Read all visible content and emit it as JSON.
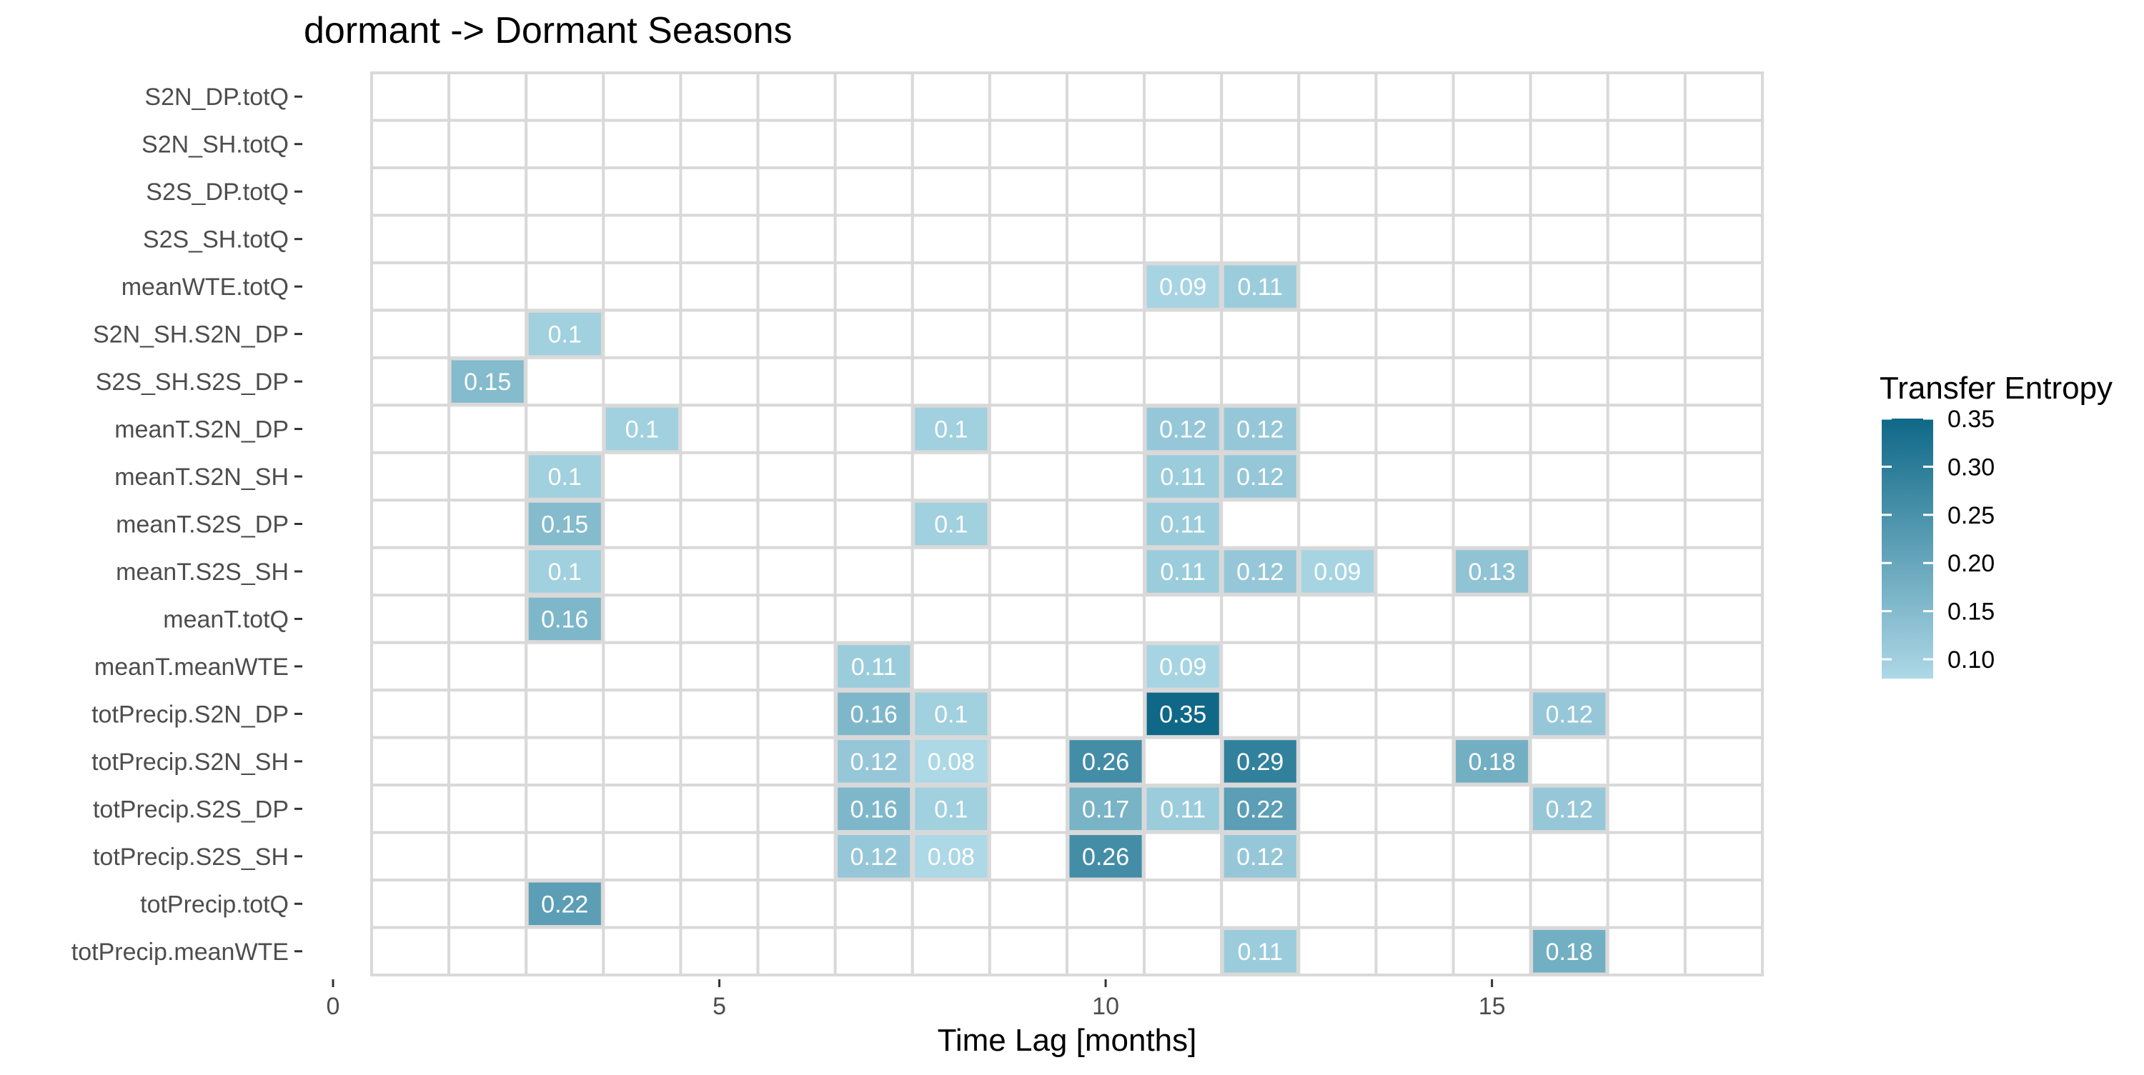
{
  "chart_data": {
    "type": "heatmap",
    "title": "dormant -> Dormant Seasons",
    "xlabel": "Time Lag [months]",
    "ylabel": "",
    "xlim": [
      0,
      18.5
    ],
    "x_ticks": [
      0,
      5,
      10,
      15
    ],
    "x_tick_labels": [
      "0",
      "5",
      "10",
      "15"
    ],
    "x_cells": [
      1,
      2,
      3,
      4,
      5,
      6,
      7,
      8,
      9,
      10,
      11,
      12,
      13,
      14,
      15,
      16,
      17,
      18
    ],
    "rows": [
      "S2N_DP.totQ",
      "S2N_SH.totQ",
      "S2S_DP.totQ",
      "S2S_SH.totQ",
      "meanWTE.totQ",
      "S2N_SH.S2N_DP",
      "S2S_SH.S2S_DP",
      "meanT.S2N_DP",
      "meanT.S2N_SH",
      "meanT.S2S_DP",
      "meanT.S2S_SH",
      "meanT.totQ",
      "meanT.meanWTE",
      "totPrecip.S2N_DP",
      "totPrecip.S2N_SH",
      "totPrecip.S2S_DP",
      "totPrecip.S2S_SH",
      "totPrecip.totQ",
      "totPrecip.meanWTE"
    ],
    "cells": [
      {
        "row": "meanWTE.totQ",
        "x": 11,
        "value": 0.09,
        "label": "0.09"
      },
      {
        "row": "meanWTE.totQ",
        "x": 12,
        "value": 0.11,
        "label": "0.11"
      },
      {
        "row": "S2N_SH.S2N_DP",
        "x": 3,
        "value": 0.1,
        "label": "0.1"
      },
      {
        "row": "S2S_SH.S2S_DP",
        "x": 2,
        "value": 0.15,
        "label": "0.15"
      },
      {
        "row": "meanT.S2N_DP",
        "x": 4,
        "value": 0.1,
        "label": "0.1"
      },
      {
        "row": "meanT.S2N_DP",
        "x": 8,
        "value": 0.1,
        "label": "0.1"
      },
      {
        "row": "meanT.S2N_DP",
        "x": 11,
        "value": 0.12,
        "label": "0.12"
      },
      {
        "row": "meanT.S2N_DP",
        "x": 12,
        "value": 0.12,
        "label": "0.12"
      },
      {
        "row": "meanT.S2N_SH",
        "x": 3,
        "value": 0.1,
        "label": "0.1"
      },
      {
        "row": "meanT.S2N_SH",
        "x": 11,
        "value": 0.11,
        "label": "0.11"
      },
      {
        "row": "meanT.S2N_SH",
        "x": 12,
        "value": 0.12,
        "label": "0.12"
      },
      {
        "row": "meanT.S2S_DP",
        "x": 3,
        "value": 0.15,
        "label": "0.15"
      },
      {
        "row": "meanT.S2S_DP",
        "x": 8,
        "value": 0.1,
        "label": "0.1"
      },
      {
        "row": "meanT.S2S_DP",
        "x": 11,
        "value": 0.11,
        "label": "0.11"
      },
      {
        "row": "meanT.S2S_SH",
        "x": 3,
        "value": 0.1,
        "label": "0.1"
      },
      {
        "row": "meanT.S2S_SH",
        "x": 11,
        "value": 0.11,
        "label": "0.11"
      },
      {
        "row": "meanT.S2S_SH",
        "x": 12,
        "value": 0.12,
        "label": "0.12"
      },
      {
        "row": "meanT.S2S_SH",
        "x": 13,
        "value": 0.09,
        "label": "0.09"
      },
      {
        "row": "meanT.S2S_SH",
        "x": 15,
        "value": 0.13,
        "label": "0.13"
      },
      {
        "row": "meanT.totQ",
        "x": 3,
        "value": 0.16,
        "label": "0.16"
      },
      {
        "row": "meanT.meanWTE",
        "x": 7,
        "value": 0.11,
        "label": "0.11"
      },
      {
        "row": "meanT.meanWTE",
        "x": 11,
        "value": 0.09,
        "label": "0.09"
      },
      {
        "row": "totPrecip.S2N_DP",
        "x": 7,
        "value": 0.16,
        "label": "0.16"
      },
      {
        "row": "totPrecip.S2N_DP",
        "x": 8,
        "value": 0.1,
        "label": "0.1"
      },
      {
        "row": "totPrecip.S2N_DP",
        "x": 11,
        "value": 0.35,
        "label": "0.35"
      },
      {
        "row": "totPrecip.S2N_DP",
        "x": 16,
        "value": 0.12,
        "label": "0.12"
      },
      {
        "row": "totPrecip.S2N_SH",
        "x": 7,
        "value": 0.12,
        "label": "0.12"
      },
      {
        "row": "totPrecip.S2N_SH",
        "x": 8,
        "value": 0.08,
        "label": "0.08"
      },
      {
        "row": "totPrecip.S2N_SH",
        "x": 10,
        "value": 0.26,
        "label": "0.26"
      },
      {
        "row": "totPrecip.S2N_SH",
        "x": 12,
        "value": 0.29,
        "label": "0.29"
      },
      {
        "row": "totPrecip.S2N_SH",
        "x": 15,
        "value": 0.18,
        "label": "0.18"
      },
      {
        "row": "totPrecip.S2S_DP",
        "x": 7,
        "value": 0.16,
        "label": "0.16"
      },
      {
        "row": "totPrecip.S2S_DP",
        "x": 8,
        "value": 0.1,
        "label": "0.1"
      },
      {
        "row": "totPrecip.S2S_DP",
        "x": 10,
        "value": 0.17,
        "label": "0.17"
      },
      {
        "row": "totPrecip.S2S_DP",
        "x": 11,
        "value": 0.11,
        "label": "0.11"
      },
      {
        "row": "totPrecip.S2S_DP",
        "x": 12,
        "value": 0.22,
        "label": "0.22"
      },
      {
        "row": "totPrecip.S2S_DP",
        "x": 16,
        "value": 0.12,
        "label": "0.12"
      },
      {
        "row": "totPrecip.S2S_SH",
        "x": 7,
        "value": 0.12,
        "label": "0.12"
      },
      {
        "row": "totPrecip.S2S_SH",
        "x": 8,
        "value": 0.08,
        "label": "0.08"
      },
      {
        "row": "totPrecip.S2S_SH",
        "x": 10,
        "value": 0.26,
        "label": "0.26"
      },
      {
        "row": "totPrecip.S2S_SH",
        "x": 12,
        "value": 0.12,
        "label": "0.12"
      },
      {
        "row": "totPrecip.totQ",
        "x": 3,
        "value": 0.22,
        "label": "0.22"
      },
      {
        "row": "totPrecip.meanWTE",
        "x": 12,
        "value": 0.11,
        "label": "0.11"
      },
      {
        "row": "totPrecip.meanWTE",
        "x": 16,
        "value": 0.18,
        "label": "0.18"
      }
    ],
    "legend": {
      "title": "Transfer Entropy",
      "placement": "right",
      "range": [
        0.08,
        0.35
      ],
      "ticks": [
        0.1,
        0.15,
        0.2,
        0.25,
        0.3,
        0.35
      ],
      "tick_labels": [
        "0.10",
        "0.15",
        "0.20",
        "0.25",
        "0.30",
        "0.35"
      ],
      "color_low": "#add8e6",
      "color_high": "#0f6887"
    },
    "grid": true,
    "colors": {
      "empty_cell": "#ffffff",
      "cell_border": "#d9d9d9",
      "cell_text": "#ffffff",
      "axis_text": "#4d4d4d",
      "title_text": "#000000"
    }
  }
}
